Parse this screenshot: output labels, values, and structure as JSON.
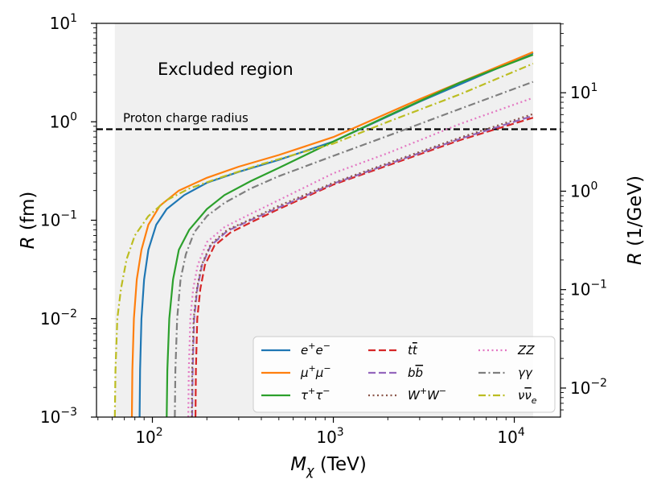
{
  "chart_data": {
    "type": "line",
    "title": "",
    "xlabel": {
      "symbol": "M",
      "subscript": "χ",
      "unit": "(TeV)"
    },
    "ylabel": {
      "symbol": "R",
      "unit": "(fm)"
    },
    "y2label": {
      "symbol": "R",
      "unit": "(1/GeV)"
    },
    "xscale": "log",
    "yscale": "log",
    "y2scale": "log",
    "xlim": [
      49.1,
      18000
    ],
    "ylim": [
      0.001,
      10
    ],
    "y2lim": [
      0.00507,
      50.7
    ],
    "x_ticks": [
      {
        "base": "10",
        "exp": "2",
        "value": 100
      },
      {
        "base": "10",
        "exp": "3",
        "value": 1000
      },
      {
        "base": "10",
        "exp": "4",
        "value": 10000
      }
    ],
    "y_ticks": [
      {
        "base": "10",
        "exp": "−3",
        "value": 0.001
      },
      {
        "base": "10",
        "exp": "−2",
        "value": 0.01
      },
      {
        "base": "10",
        "exp": "−1",
        "value": 0.1
      },
      {
        "base": "10",
        "exp": "0",
        "value": 1
      },
      {
        "base": "10",
        "exp": "1",
        "value": 10
      }
    ],
    "y2_ticks": [
      {
        "base": "10",
        "exp": "−2",
        "value": 0.01
      },
      {
        "base": "10",
        "exp": "−1",
        "value": 0.1
      },
      {
        "base": "10",
        "exp": "0",
        "value": 1
      },
      {
        "base": "10",
        "exp": "1",
        "value": 10
      }
    ],
    "fm_per_invGeV": 0.1973,
    "excluded_region": {
      "label": "Excluded region",
      "x_min": 62,
      "x_max": 12700,
      "color": "#f0f0f0"
    },
    "reference_line": {
      "label": "Proton charge radius",
      "y": 0.84,
      "color": "#000000",
      "style": "dashed"
    },
    "series": [
      {
        "name": "e⁺e⁻",
        "legend": {
          "base": "e",
          "sup": "+",
          "base2": "e",
          "sup2": "−"
        },
        "color": "#1f77b4",
        "style": "solid",
        "x": [
          85,
          85.5,
          87,
          90,
          95,
          105,
          120,
          150,
          200,
          300,
          500,
          1000,
          3000,
          12700
        ],
        "y": [
          0.001,
          0.003,
          0.01,
          0.025,
          0.05,
          0.09,
          0.13,
          0.18,
          0.24,
          0.31,
          0.41,
          0.63,
          1.6,
          5.0
        ]
      },
      {
        "name": "μ⁺μ⁻",
        "legend": {
          "base": "μ",
          "sup": "+",
          "base2": "μ",
          "sup2": "−"
        },
        "color": "#ff7f0e",
        "style": "solid",
        "x": [
          77,
          77.5,
          79,
          82,
          87,
          95,
          110,
          140,
          200,
          300,
          500,
          1000,
          3000,
          12700
        ],
        "y": [
          0.001,
          0.003,
          0.01,
          0.025,
          0.05,
          0.09,
          0.14,
          0.2,
          0.27,
          0.35,
          0.46,
          0.7,
          1.7,
          5.1
        ]
      },
      {
        "name": "τ⁺τ⁻",
        "legend": {
          "base": "τ",
          "sup": "+",
          "base2": "τ",
          "sup2": "−"
        },
        "color": "#2ca02c",
        "style": "solid",
        "x": [
          120,
          121,
          124,
          130,
          140,
          160,
          200,
          250,
          350,
          500,
          1000,
          2000,
          5000,
          12700
        ],
        "y": [
          0.001,
          0.003,
          0.01,
          0.025,
          0.05,
          0.08,
          0.13,
          0.18,
          0.25,
          0.34,
          0.63,
          1.15,
          2.5,
          4.8
        ]
      },
      {
        "name": "tt̄",
        "legend": {
          "base": "t",
          "bar": "t"
        },
        "color": "#d62728",
        "style": "dashed",
        "x": [
          173,
          174,
          177,
          184,
          195,
          220,
          270,
          350,
          500,
          1000,
          2000,
          5000,
          12700
        ],
        "y": [
          0.001,
          0.003,
          0.01,
          0.02,
          0.035,
          0.055,
          0.075,
          0.095,
          0.13,
          0.23,
          0.36,
          0.65,
          1.1
        ]
      },
      {
        "name": "bb̄",
        "legend": {
          "base": "b",
          "bar": "b"
        },
        "color": "#9467bd",
        "style": "dashed",
        "x": [
          166,
          167,
          170,
          177,
          188,
          210,
          260,
          340,
          500,
          1000,
          2000,
          5000,
          12700
        ],
        "y": [
          0.001,
          0.003,
          0.01,
          0.02,
          0.035,
          0.055,
          0.078,
          0.098,
          0.135,
          0.235,
          0.37,
          0.67,
          1.15
        ]
      },
      {
        "name": "W⁺W⁻",
        "legend": {
          "base": "W",
          "sup": "+",
          "base2": "W",
          "sup2": "−"
        },
        "color": "#8c564b",
        "style": "dotted",
        "x": [
          165,
          166,
          169,
          176,
          187,
          210,
          260,
          340,
          500,
          1000,
          2000,
          5000,
          12700
        ],
        "y": [
          0.001,
          0.003,
          0.01,
          0.02,
          0.035,
          0.057,
          0.08,
          0.1,
          0.14,
          0.24,
          0.38,
          0.69,
          1.2
        ]
      },
      {
        "name": "ZZ",
        "legend": {
          "base": "ZZ"
        },
        "color": "#e377c2",
        "style": "dotted",
        "x": [
          158,
          159,
          162,
          168,
          178,
          200,
          250,
          330,
          500,
          1000,
          2000,
          5000,
          12700
        ],
        "y": [
          0.001,
          0.003,
          0.01,
          0.02,
          0.035,
          0.06,
          0.085,
          0.11,
          0.16,
          0.3,
          0.48,
          0.95,
          1.75
        ]
      },
      {
        "name": "γγ",
        "legend": {
          "base": "γγ"
        },
        "color": "#7f7f7f",
        "style": "dashdot",
        "x": [
          133,
          134,
          137,
          143,
          153,
          170,
          200,
          250,
          350,
          500,
          1000,
          2000,
          5000,
          12700
        ],
        "y": [
          0.001,
          0.003,
          0.01,
          0.025,
          0.045,
          0.075,
          0.11,
          0.15,
          0.21,
          0.28,
          0.45,
          0.72,
          1.35,
          2.55
        ]
      },
      {
        "name": "νν̄ₑ",
        "legend": {
          "base": "ν",
          "bar": "ν",
          "sub": "e"
        },
        "color": "#bcbd22",
        "style": "dashdot",
        "x": [
          62,
          62.5,
          64,
          67,
          72,
          80,
          95,
          120,
          160,
          250,
          400,
          700,
          1000,
          2000,
          5000,
          12700
        ],
        "y": [
          0.001,
          0.003,
          0.01,
          0.02,
          0.04,
          0.07,
          0.11,
          0.16,
          0.21,
          0.28,
          0.37,
          0.5,
          0.6,
          1.0,
          1.9,
          3.9
        ]
      }
    ]
  }
}
